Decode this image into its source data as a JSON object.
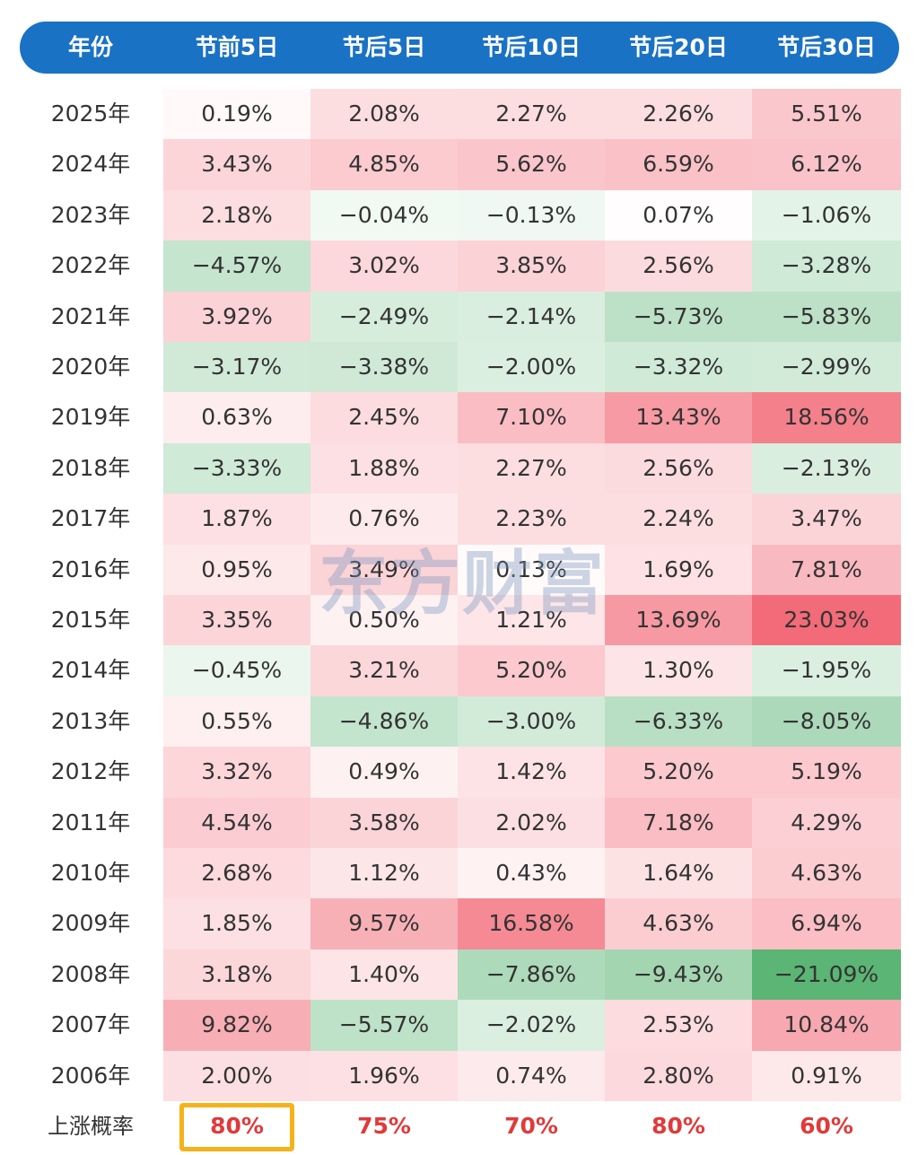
{
  "chart_data": {
    "type": "heatmap",
    "title": "",
    "columns": [
      "年份",
      "节前5日",
      "节后5日",
      "节后10日",
      "节后20日",
      "节后30日"
    ],
    "rows": [
      {
        "year": "2025年",
        "values": [
          "0.19%",
          "2.08%",
          "2.27%",
          "2.26%",
          "5.51%"
        ]
      },
      {
        "year": "2024年",
        "values": [
          "3.43%",
          "4.85%",
          "5.62%",
          "6.59%",
          "6.12%"
        ]
      },
      {
        "year": "2023年",
        "values": [
          "2.18%",
          "-0.04%",
          "-0.13%",
          "0.07%",
          "-1.06%"
        ]
      },
      {
        "year": "2022年",
        "values": [
          "-4.57%",
          "3.02%",
          "3.85%",
          "2.56%",
          "-3.28%"
        ]
      },
      {
        "year": "2021年",
        "values": [
          "3.92%",
          "-2.49%",
          "-2.14%",
          "-5.73%",
          "-5.83%"
        ]
      },
      {
        "year": "2020年",
        "values": [
          "-3.17%",
          "-3.38%",
          "-2.00%",
          "-3.32%",
          "-2.99%"
        ]
      },
      {
        "year": "2019年",
        "values": [
          "0.63%",
          "2.45%",
          "7.10%",
          "13.43%",
          "18.56%"
        ]
      },
      {
        "year": "2018年",
        "values": [
          "-3.33%",
          "1.88%",
          "2.27%",
          "2.56%",
          "-2.13%"
        ]
      },
      {
        "year": "2017年",
        "values": [
          "1.87%",
          "0.76%",
          "2.23%",
          "2.24%",
          "3.47%"
        ]
      },
      {
        "year": "2016年",
        "values": [
          "0.95%",
          "3.49%",
          "0.13%",
          "1.69%",
          "7.81%"
        ]
      },
      {
        "year": "2015年",
        "values": [
          "3.35%",
          "0.50%",
          "1.21%",
          "13.69%",
          "23.03%"
        ]
      },
      {
        "year": "2014年",
        "values": [
          "-0.45%",
          "3.21%",
          "5.20%",
          "1.30%",
          "-1.95%"
        ]
      },
      {
        "year": "2013年",
        "values": [
          "0.55%",
          "-4.86%",
          "-3.00%",
          "-6.33%",
          "-8.05%"
        ]
      },
      {
        "year": "2012年",
        "values": [
          "3.32%",
          "0.49%",
          "1.42%",
          "5.20%",
          "5.19%"
        ]
      },
      {
        "year": "2011年",
        "values": [
          "4.54%",
          "3.58%",
          "2.02%",
          "7.18%",
          "4.29%"
        ]
      },
      {
        "year": "2010年",
        "values": [
          "2.68%",
          "1.12%",
          "0.43%",
          "1.64%",
          "4.63%"
        ]
      },
      {
        "year": "2009年",
        "values": [
          "1.85%",
          "9.57%",
          "16.58%",
          "4.63%",
          "6.94%"
        ]
      },
      {
        "year": "2008年",
        "values": [
          "3.18%",
          "1.40%",
          "-7.86%",
          "-9.43%",
          "-21.09%"
        ]
      },
      {
        "year": "2007年",
        "values": [
          "9.82%",
          "-5.57%",
          "-2.02%",
          "2.53%",
          "10.84%"
        ]
      },
      {
        "year": "2006年",
        "values": [
          "2.00%",
          "1.96%",
          "0.74%",
          "2.80%",
          "0.91%"
        ]
      }
    ],
    "summary": {
      "label": "上涨概率",
      "values": [
        "80%",
        "75%",
        "70%",
        "80%",
        "60%"
      ]
    },
    "highlighted_summary_column": 0
  },
  "watermark": "东方财富",
  "colors": {
    "header": "#1a72c4",
    "positive": "#f04a5a",
    "negative": "#3ea85c",
    "probability_text": "#e03a3a",
    "highlight_border": "#f6b21a"
  }
}
